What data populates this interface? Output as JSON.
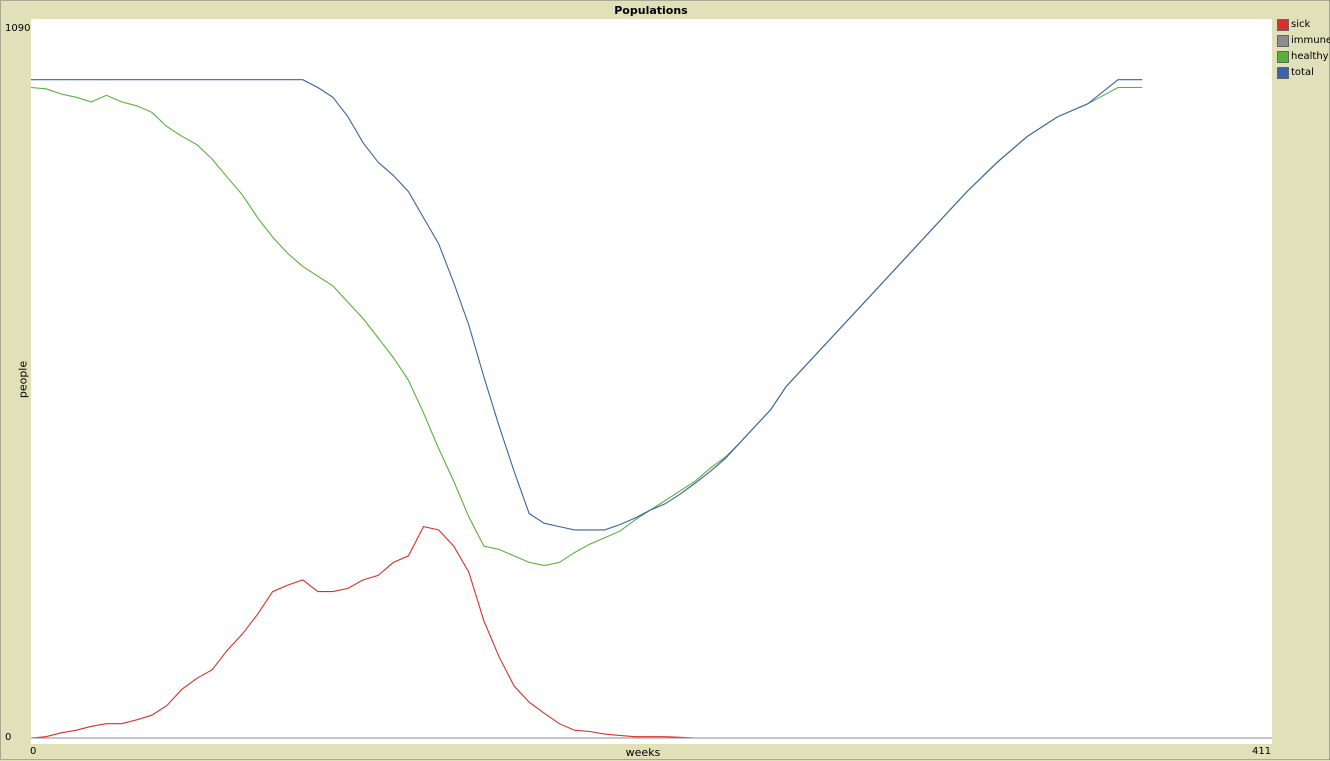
{
  "chart_data": {
    "type": "line",
    "title": "Populations",
    "xlabel": "weeks",
    "ylabel": "people",
    "xlim": [
      0,
      411
    ],
    "ylim": [
      0,
      1090
    ],
    "x_tick_labels": [
      "0",
      "411"
    ],
    "y_tick_labels": [
      "0",
      "1090"
    ],
    "grid": false,
    "legend_position": "right",
    "series": [
      {
        "name": "sick",
        "color": "#d73229",
        "x": [
          0,
          5,
          10,
          15,
          20,
          25,
          30,
          35,
          40,
          45,
          50,
          55,
          60,
          65,
          70,
          75,
          80,
          85,
          90,
          95,
          100,
          105,
          110,
          115,
          120,
          125,
          130,
          135,
          140,
          145,
          150,
          155,
          160,
          165,
          170,
          175,
          180,
          185,
          190,
          195,
          200,
          205,
          210,
          215,
          220,
          225,
          230,
          240,
          245
        ],
        "y": [
          0,
          2,
          8,
          12,
          18,
          22,
          22,
          28,
          35,
          50,
          75,
          92,
          105,
          135,
          160,
          190,
          225,
          235,
          243,
          225,
          225,
          230,
          243,
          250,
          270,
          280,
          325,
          320,
          295,
          255,
          180,
          125,
          80,
          55,
          38,
          22,
          12,
          10,
          6,
          4,
          2,
          2,
          2,
          1,
          0,
          0,
          0,
          0,
          0
        ]
      },
      {
        "name": "immune",
        "color": "#8d8d8d",
        "x": [
          0,
          411
        ],
        "y": [
          0,
          0
        ]
      },
      {
        "name": "healthy",
        "color": "#59b03c",
        "x": [
          0,
          5,
          10,
          15,
          20,
          25,
          30,
          35,
          40,
          45,
          50,
          55,
          60,
          65,
          70,
          75,
          80,
          85,
          90,
          95,
          100,
          105,
          110,
          115,
          120,
          125,
          130,
          135,
          140,
          145,
          150,
          155,
          160,
          165,
          170,
          175,
          180,
          185,
          190,
          195,
          200,
          205,
          210,
          215,
          220,
          225,
          230,
          235,
          240,
          245,
          250,
          260,
          270,
          280,
          290,
          300,
          310,
          320,
          330,
          340,
          350,
          360,
          368
        ],
        "y": [
          1000,
          998,
          990,
          985,
          978,
          988,
          978,
          972,
          962,
          940,
          925,
          912,
          890,
          862,
          835,
          800,
          770,
          745,
          725,
          710,
          695,
          670,
          645,
          615,
          585,
          550,
          500,
          445,
          395,
          340,
          295,
          290,
          280,
          270,
          265,
          270,
          285,
          298,
          308,
          318,
          335,
          350,
          365,
          380,
          395,
          415,
          432,
          455,
          480,
          505,
          540,
          590,
          640,
          690,
          740,
          790,
          840,
          885,
          925,
          955,
          975,
          1000,
          1000
        ]
      },
      {
        "name": "total",
        "color": "#3b62aa",
        "x": [
          0,
          5,
          10,
          15,
          20,
          25,
          30,
          35,
          40,
          45,
          50,
          55,
          60,
          65,
          70,
          75,
          80,
          85,
          90,
          95,
          100,
          105,
          110,
          115,
          120,
          125,
          130,
          135,
          140,
          145,
          150,
          155,
          160,
          165,
          170,
          175,
          180,
          185,
          190,
          195,
          200,
          205,
          210,
          215,
          220,
          225,
          230,
          235,
          240,
          245,
          250,
          260,
          270,
          280,
          290,
          300,
          310,
          320,
          330,
          340,
          350,
          360,
          368
        ],
        "y": [
          1012,
          1012,
          1012,
          1012,
          1012,
          1012,
          1012,
          1012,
          1012,
          1012,
          1012,
          1012,
          1012,
          1012,
          1012,
          1012,
          1012,
          1012,
          1012,
          1000,
          985,
          955,
          915,
          885,
          865,
          840,
          800,
          760,
          700,
          635,
          555,
          480,
          410,
          345,
          330,
          325,
          320,
          320,
          320,
          328,
          338,
          350,
          360,
          375,
          392,
          410,
          430,
          455,
          480,
          505,
          540,
          590,
          640,
          690,
          740,
          790,
          840,
          885,
          925,
          955,
          975,
          1012,
          1012
        ]
      }
    ]
  }
}
